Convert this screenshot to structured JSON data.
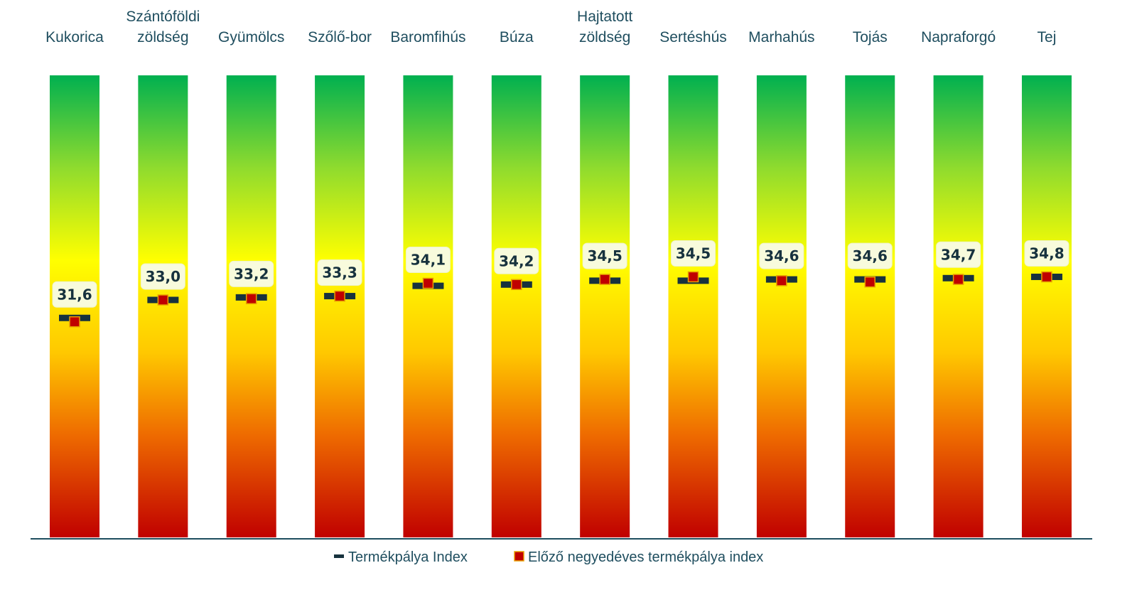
{
  "chart_data": {
    "type": "bar",
    "title": "",
    "xlabel": "",
    "ylabel": "",
    "categories": [
      [
        "Kukorica"
      ],
      [
        "Szántóföldi",
        "zöldség"
      ],
      [
        "Gyümölcs"
      ],
      [
        "Szőlő-bor"
      ],
      [
        "Baromfihús"
      ],
      [
        "Búza"
      ],
      [
        "Hajtatott",
        "zöldség"
      ],
      [
        "Sertéshús"
      ],
      [
        "Marhahús"
      ],
      [
        "Tojás"
      ],
      [
        "Napraforgó"
      ],
      [
        "Tej"
      ]
    ],
    "series": [
      {
        "name": "Termékpálya Index",
        "values": [
          31.6,
          33.0,
          33.2,
          33.3,
          34.1,
          34.2,
          34.5,
          34.5,
          34.6,
          34.6,
          34.7,
          34.8
        ],
        "labels": [
          "31,6",
          "33,0",
          "33,2",
          "33,3",
          "34,1",
          "34,2",
          "34,5",
          "34,5",
          "34,6",
          "34,6",
          "34,7",
          "34,8"
        ],
        "color": "#17323e"
      },
      {
        "name": "Előző negyedéves termékpálya index",
        "values": [
          31.3,
          33.0,
          33.1,
          33.3,
          34.3,
          34.2,
          34.6,
          34.8,
          34.5,
          34.4,
          34.6,
          34.8
        ],
        "color": "#c00000"
      }
    ],
    "ylim": [
      14.5,
      50.5
    ],
    "gradient": [
      "#c00000",
      "#ffd500",
      "#ffff00",
      "#92d050",
      "#00b050"
    ],
    "legend": "bottom"
  }
}
